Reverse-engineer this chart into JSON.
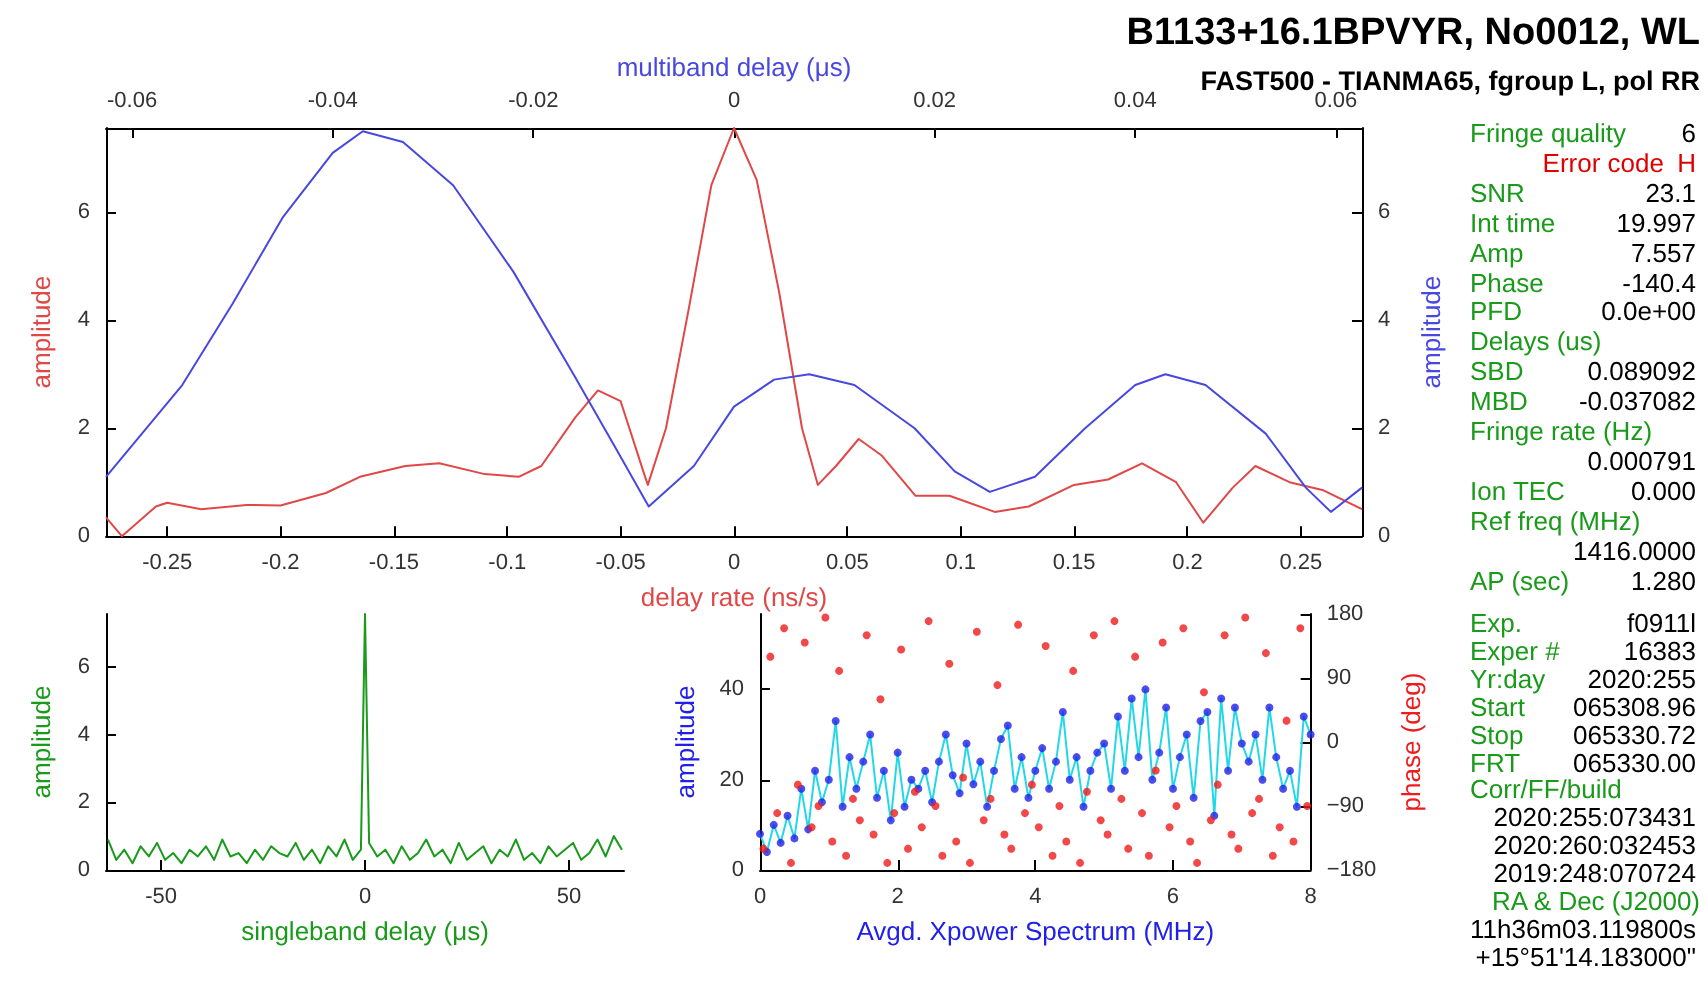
{
  "chart_data": [
    {
      "type": "line",
      "xlabel": "delay rate (ns/s)",
      "x2label": "multiband delay (μs)",
      "ylabel": "amplitude",
      "y2label": "amplitude",
      "xlim": [
        -0.277,
        0.277
      ],
      "xticks": [
        -0.25,
        -0.2,
        -0.15,
        -0.1,
        -0.05,
        0,
        0.05,
        0.1,
        0.15,
        0.2,
        0.25
      ],
      "x2lim": [
        -0.0626,
        0.0626
      ],
      "x2ticks": [
        -0.06,
        -0.04,
        -0.02,
        0,
        0.02,
        0.04,
        0.06
      ],
      "ylim": [
        0,
        7.56
      ],
      "yticks": [
        0,
        2,
        4,
        6
      ],
      "y2lim": [
        0,
        7.56
      ],
      "y2ticks": [
        0,
        2,
        4,
        6
      ],
      "marker": "none",
      "series": [
        {
          "color": "#e04848",
          "x": [
            -0.277,
            -0.27,
            -0.255,
            -0.25,
            -0.235,
            -0.215,
            -0.2,
            -0.18,
            -0.165,
            -0.145,
            -0.13,
            -0.11,
            -0.095,
            -0.085,
            -0.07,
            -0.06,
            -0.05,
            -0.04,
            -0.038,
            -0.03,
            -0.02,
            -0.01,
            0,
            0.01,
            0.02,
            0.03,
            0.037,
            0.045,
            0.055,
            0.065,
            0.08,
            0.095,
            0.115,
            0.13,
            0.15,
            0.165,
            0.18,
            0.195,
            0.207,
            0.22,
            0.23,
            0.245,
            0.26,
            0.277
          ],
          "values": [
            0.35,
            0.0,
            0.55,
            0.62,
            0.5,
            0.58,
            0.57,
            0.8,
            1.1,
            1.3,
            1.35,
            1.15,
            1.1,
            1.3,
            2.2,
            2.7,
            2.5,
            1.2,
            0.95,
            2.0,
            4.2,
            6.5,
            7.56,
            6.6,
            4.5,
            2.0,
            0.95,
            1.3,
            1.8,
            1.5,
            0.75,
            0.75,
            0.45,
            0.55,
            0.95,
            1.05,
            1.35,
            1.0,
            0.25,
            0.9,
            1.3,
            1.0,
            0.85,
            0.5
          ]
        },
        {
          "color": "#4848e0",
          "axis": "x2",
          "x": [
            -0.0626,
            -0.055,
            -0.05,
            -0.045,
            -0.04,
            -0.037,
            -0.033,
            -0.028,
            -0.022,
            -0.016,
            -0.012,
            -0.0085,
            -0.004,
            0,
            0.004,
            0.0075,
            0.012,
            0.018,
            0.022,
            0.0255,
            0.03,
            0.035,
            0.04,
            0.043,
            0.047,
            0.053,
            0.057,
            0.0595,
            0.0626
          ],
          "values": [
            1.1,
            2.8,
            4.3,
            5.9,
            7.1,
            7.5,
            7.3,
            6.5,
            4.9,
            3.0,
            1.7,
            0.55,
            1.3,
            2.4,
            2.9,
            3.0,
            2.8,
            2.0,
            1.2,
            0.82,
            1.1,
            2.0,
            2.8,
            3.0,
            2.8,
            1.9,
            0.9,
            0.45,
            0.9
          ]
        }
      ]
    },
    {
      "type": "line",
      "xlabel": "singleband delay (μs)",
      "ylabel": "amplitude",
      "xlim": [
        -63.5,
        63.5
      ],
      "xticks": [
        -50,
        0,
        50
      ],
      "ylim": [
        0,
        7.56
      ],
      "yticks": [
        0,
        2,
        4,
        6
      ],
      "marker": "none",
      "series": [
        {
          "color": "#1a9a1a",
          "x": [
            -63,
            -61,
            -59,
            -57,
            -55,
            -53,
            -51,
            -49,
            -47,
            -45,
            -43,
            -41,
            -39,
            -37,
            -35,
            -33,
            -31,
            -29,
            -27,
            -25,
            -23,
            -21,
            -19,
            -17,
            -15,
            -13,
            -11,
            -9,
            -7,
            -5,
            -3,
            -1,
            0,
            1,
            3,
            5,
            7,
            9,
            11,
            13,
            15,
            17,
            19,
            21,
            23,
            25,
            27,
            29,
            31,
            33,
            35,
            37,
            39,
            41,
            43,
            45,
            47,
            49,
            51,
            53,
            55,
            57,
            59,
            61,
            63
          ],
          "values": [
            0.9,
            0.3,
            0.6,
            0.2,
            0.7,
            0.4,
            0.8,
            0.3,
            0.5,
            0.2,
            0.6,
            0.4,
            0.7,
            0.3,
            0.9,
            0.4,
            0.5,
            0.2,
            0.6,
            0.3,
            0.7,
            0.5,
            0.4,
            0.8,
            0.3,
            0.6,
            0.2,
            0.7,
            0.4,
            0.9,
            0.3,
            0.6,
            7.56,
            0.8,
            0.4,
            0.6,
            0.2,
            0.7,
            0.3,
            0.5,
            0.9,
            0.4,
            0.6,
            0.2,
            0.8,
            0.3,
            0.5,
            0.7,
            0.2,
            0.6,
            0.4,
            0.9,
            0.3,
            0.5,
            0.2,
            0.7,
            0.4,
            0.6,
            0.8,
            0.3,
            0.5,
            0.9,
            0.4,
            1.0,
            0.6
          ]
        }
      ]
    },
    {
      "type": "scatter",
      "xlabel": "Avgd. Xpower Spectrum (MHz)",
      "ylabel": "amplitude",
      "y2label": "phase (deg)",
      "xlim": [
        0,
        8
      ],
      "xticks": [
        0,
        2,
        4,
        6,
        8
      ],
      "ylim": [
        0,
        56.7
      ],
      "yticks": [
        0,
        20,
        40
      ],
      "y2lim": [
        -180,
        180
      ],
      "y2ticks": [
        {
          "value": -180,
          "label": "−180"
        },
        {
          "value": -90,
          "label": "−90"
        },
        0,
        90,
        180
      ],
      "marker": "circle",
      "x": [
        0,
        0.1,
        0.2,
        0.3,
        0.4,
        0.5,
        0.6,
        0.7,
        0.8,
        0.9,
        1,
        1.1,
        1.2,
        1.3,
        1.4,
        1.5,
        1.6,
        1.7,
        1.8,
        1.9,
        2,
        2.1,
        2.2,
        2.3,
        2.4,
        2.5,
        2.6,
        2.7,
        2.8,
        2.9,
        3,
        3.1,
        3.2,
        3.3,
        3.4,
        3.5,
        3.6,
        3.7,
        3.8,
        3.9,
        4,
        4.1,
        4.2,
        4.3,
        4.4,
        4.5,
        4.6,
        4.7,
        4.8,
        4.9,
        5,
        5.1,
        5.2,
        5.3,
        5.4,
        5.5,
        5.6,
        5.7,
        5.8,
        5.9,
        6,
        6.1,
        6.2,
        6.3,
        6.4,
        6.5,
        6.6,
        6.7,
        6.8,
        6.9,
        7,
        7.1,
        7.2,
        7.3,
        7.4,
        7.5,
        7.6,
        7.7,
        7.8,
        7.9,
        8
      ],
      "series": [
        {
          "type": "scatter",
          "color": "#2020e8",
          "values": [
            8,
            4,
            10,
            6,
            12,
            7,
            18,
            9,
            22,
            15,
            20,
            33,
            14,
            25,
            18,
            24,
            30,
            16,
            22,
            11,
            26,
            14,
            20,
            18,
            22,
            15,
            24,
            30,
            21,
            17,
            28,
            19,
            24,
            14,
            22,
            29,
            32,
            18,
            25,
            16,
            22,
            27,
            18,
            24,
            35,
            20,
            25,
            14,
            22,
            26,
            28,
            18,
            34,
            22,
            38,
            25,
            40,
            20,
            26,
            36,
            18,
            25,
            30,
            16,
            33,
            35,
            12,
            38,
            22,
            36,
            28,
            24,
            30,
            20,
            36,
            25,
            18,
            22,
            14,
            34,
            30
          ]
        },
        {
          "type": "line",
          "marker": "none",
          "color": "#22d8e8",
          "values": [
            8,
            4,
            10,
            6,
            12,
            7,
            18,
            9,
            22,
            15,
            20,
            33,
            14,
            25,
            18,
            24,
            30,
            16,
            22,
            11,
            26,
            14,
            20,
            18,
            22,
            15,
            24,
            30,
            21,
            17,
            28,
            19,
            24,
            14,
            22,
            29,
            32,
            18,
            25,
            16,
            22,
            27,
            18,
            24,
            35,
            20,
            25,
            14,
            22,
            26,
            28,
            18,
            34,
            22,
            38,
            25,
            40,
            20,
            26,
            36,
            18,
            25,
            30,
            16,
            33,
            35,
            12,
            38,
            22,
            36,
            28,
            24,
            30,
            20,
            36,
            25,
            18,
            22,
            14,
            34,
            30
          ]
        },
        {
          "type": "scatter",
          "axis": "y2",
          "color": "#ee1c1c",
          "x": [
            0.05,
            0.15,
            0.25,
            0.35,
            0.45,
            0.55,
            0.65,
            0.75,
            0.85,
            0.95,
            1.05,
            1.15,
            1.25,
            1.35,
            1.45,
            1.55,
            1.65,
            1.75,
            1.85,
            1.95,
            2.05,
            2.15,
            2.25,
            2.35,
            2.45,
            2.55,
            2.65,
            2.75,
            2.85,
            2.95,
            3.05,
            3.15,
            3.25,
            3.35,
            3.45,
            3.55,
            3.65,
            3.75,
            3.85,
            3.95,
            4.05,
            4.15,
            4.25,
            4.35,
            4.45,
            4.55,
            4.65,
            4.75,
            4.85,
            4.95,
            5.05,
            5.15,
            5.25,
            5.35,
            5.45,
            5.55,
            5.65,
            5.75,
            5.85,
            5.95,
            6.05,
            6.15,
            6.25,
            6.35,
            6.45,
            6.55,
            6.65,
            6.75,
            6.85,
            6.95,
            7.05,
            7.15,
            7.25,
            7.35,
            7.45,
            7.55,
            7.65,
            7.75,
            7.85,
            7.95
          ],
          "values": [
            -150,
            120,
            -100,
            160,
            -170,
            -60,
            140,
            -120,
            -90,
            175,
            -140,
            100,
            -160,
            -80,
            -110,
            150,
            -130,
            60,
            -170,
            -100,
            130,
            -150,
            -70,
            -120,
            170,
            -90,
            -160,
            110,
            -140,
            -50,
            -170,
            155,
            -110,
            -80,
            80,
            -130,
            -150,
            165,
            -100,
            -60,
            -120,
            135,
            -160,
            -90,
            -140,
            100,
            -170,
            -70,
            150,
            -110,
            -130,
            170,
            -80,
            -150,
            120,
            -100,
            -160,
            -40,
            140,
            -120,
            -90,
            160,
            -140,
            -170,
            70,
            -110,
            -60,
            150,
            -130,
            -150,
            175,
            -100,
            -80,
            125,
            -160,
            -120,
            30,
            -140,
            160,
            -90
          ]
        }
      ]
    },
    {
      "type": "other",
      "title": "B1133+16.1BPVYR, No0012, WL",
      "subtitle": "FAST500 - TIANMA65, fgroup L, pol RR",
      "annotations": [
        "Fringe quality",
        "6",
        "Error code",
        "H",
        "SNR",
        "23.1",
        "Int time",
        "19.997",
        "Amp",
        "7.557",
        "Phase",
        "-140.4",
        "PFD",
        "0.0e+00",
        "Delays (us)",
        "SBD",
        "0.089092",
        "MBD",
        "-0.037082",
        "Fringe rate (Hz)",
        "0.000791",
        "Ion TEC",
        "0.000",
        "Ref freq (MHz)",
        "1416.0000",
        "AP (sec)",
        "1.280",
        "Exp.",
        "f0911l",
        "Exper #",
        "16383",
        "Yr:day",
        "2020:255",
        "Start",
        "065308.96",
        "Stop",
        "065330.72",
        "FRT",
        "065330.00",
        "Corr/FF/build",
        "2020:255:073431",
        "2020:260:032453",
        "2019:248:070724",
        "RA & Dec (J2000)",
        "11h36m03.119800s",
        "+15°51'14.183000\""
      ]
    }
  ]
}
